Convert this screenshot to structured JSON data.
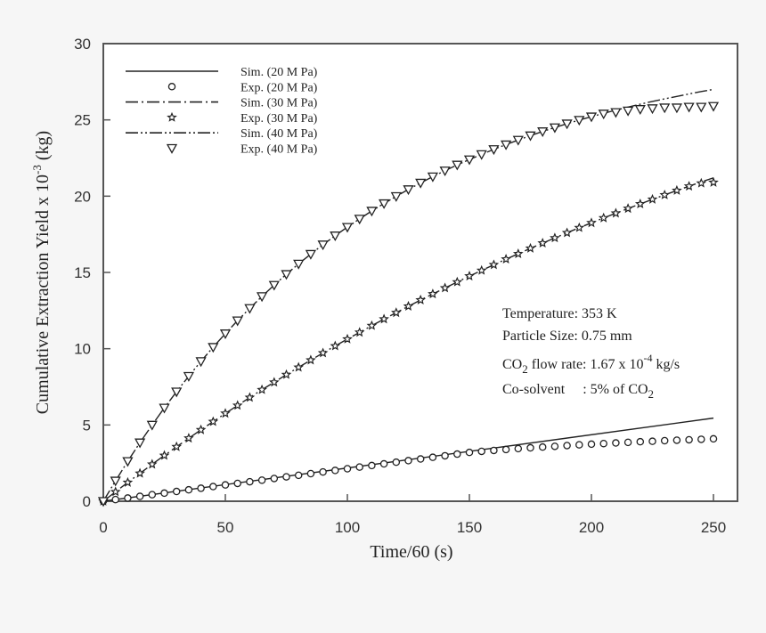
{
  "chart_data": {
    "type": "scatter",
    "xlabel": "Time/60 (s)",
    "ylabel_parts": [
      "Cumulative Extraction Yield x 10",
      "-3",
      " (kg)"
    ],
    "xlim": [
      0,
      250
    ],
    "ylim": [
      0,
      30
    ],
    "xticks": [
      0,
      50,
      100,
      150,
      200,
      250
    ],
    "yticks": [
      0,
      5,
      10,
      15,
      20,
      25,
      30
    ],
    "grid": false,
    "legend_placement": "top-left",
    "annotation": {
      "temperature": "Temperature:  353 K",
      "particle_size": "Particle Size:  0.75 mm",
      "flow_parts": [
        "CO",
        "2",
        " flow rate: 1.67 x 10",
        "-4",
        " kg/s"
      ],
      "cosolvent_parts": [
        "Co-solvent     : 5% of CO",
        "2"
      ]
    },
    "x": [
      0,
      5,
      10,
      15,
      20,
      25,
      30,
      35,
      40,
      45,
      50,
      55,
      60,
      65,
      70,
      75,
      80,
      85,
      90,
      95,
      100,
      105,
      110,
      115,
      120,
      125,
      130,
      135,
      140,
      145,
      150,
      155,
      160,
      165,
      170,
      175,
      180,
      185,
      190,
      195,
      200,
      205,
      210,
      215,
      220,
      225,
      230,
      235,
      240,
      245,
      250
    ],
    "series": [
      {
        "name": "Sim. (20 M Pa)",
        "kind": "line",
        "style": "solid",
        "x": [
          0,
          250
        ],
        "y": [
          0,
          5.45
        ]
      },
      {
        "name": "Exp. (20 M Pa)",
        "kind": "marker",
        "marker": "circle",
        "y": [
          0,
          0.11,
          0.21,
          0.32,
          0.43,
          0.53,
          0.64,
          0.75,
          0.85,
          0.96,
          1.07,
          1.17,
          1.28,
          1.38,
          1.49,
          1.6,
          1.7,
          1.81,
          1.92,
          2.02,
          2.13,
          2.24,
          2.34,
          2.45,
          2.56,
          2.66,
          2.77,
          2.88,
          2.98,
          3.09,
          3.2,
          3.27,
          3.33,
          3.39,
          3.45,
          3.5,
          3.55,
          3.6,
          3.65,
          3.7,
          3.74,
          3.78,
          3.82,
          3.86,
          3.9,
          3.93,
          3.97,
          4.0,
          4.03,
          4.06,
          4.09
        ]
      },
      {
        "name": "Sim. (30 M Pa)",
        "kind": "line",
        "style": "dash-dot",
        "y": [
          0,
          0.62,
          1.23,
          1.83,
          2.42,
          3.0,
          3.57,
          4.13,
          4.68,
          5.22,
          5.76,
          6.28,
          6.8,
          7.31,
          7.8,
          8.3,
          8.78,
          9.25,
          9.72,
          10.18,
          10.63,
          11.07,
          11.51,
          11.94,
          12.36,
          12.78,
          13.19,
          13.59,
          13.98,
          14.37,
          14.76,
          15.13,
          15.5,
          15.87,
          16.22,
          16.58,
          16.92,
          17.26,
          17.6,
          17.93,
          18.25,
          18.57,
          18.88,
          19.19,
          19.49,
          19.79,
          20.08,
          20.37,
          20.65,
          20.93,
          21.2
        ]
      },
      {
        "name": "Exp. (30 M Pa)",
        "kind": "marker",
        "marker": "star",
        "y": [
          0,
          0.62,
          1.23,
          1.83,
          2.42,
          3.0,
          3.57,
          4.13,
          4.68,
          5.22,
          5.76,
          6.28,
          6.8,
          7.31,
          7.8,
          8.3,
          8.78,
          9.25,
          9.72,
          10.18,
          10.63,
          11.07,
          11.51,
          11.94,
          12.36,
          12.78,
          13.19,
          13.59,
          13.98,
          14.37,
          14.76,
          15.13,
          15.5,
          15.87,
          16.22,
          16.58,
          16.92,
          17.26,
          17.6,
          17.93,
          18.25,
          18.57,
          18.88,
          19.19,
          19.49,
          19.79,
          20.08,
          20.37,
          20.65,
          20.85,
          20.9
        ]
      },
      {
        "name": "Sim. (40 M Pa)",
        "kind": "line",
        "style": "dash-dot-dot",
        "y": [
          0,
          1.34,
          2.62,
          3.84,
          5.0,
          6.12,
          7.18,
          8.2,
          9.17,
          10.1,
          10.99,
          11.84,
          12.65,
          13.43,
          14.17,
          14.88,
          15.56,
          16.2,
          16.82,
          17.41,
          17.97,
          18.51,
          19.03,
          19.52,
          19.99,
          20.44,
          20.87,
          21.28,
          21.67,
          22.05,
          22.4,
          22.74,
          23.07,
          23.38,
          23.68,
          23.97,
          24.24,
          24.5,
          24.75,
          24.99,
          25.21,
          25.43,
          25.64,
          25.84,
          26.03,
          26.21,
          26.38,
          26.54,
          26.7,
          26.86,
          27.0
        ]
      },
      {
        "name": "Exp. (40 M Pa)",
        "kind": "marker",
        "marker": "triangle-down",
        "y": [
          0,
          1.34,
          2.62,
          3.84,
          5.0,
          6.12,
          7.18,
          8.2,
          9.17,
          10.1,
          10.99,
          11.84,
          12.65,
          13.43,
          14.17,
          14.88,
          15.56,
          16.2,
          16.82,
          17.41,
          17.97,
          18.51,
          19.03,
          19.52,
          19.99,
          20.44,
          20.87,
          21.28,
          21.67,
          22.05,
          22.4,
          22.74,
          23.07,
          23.38,
          23.68,
          23.97,
          24.24,
          24.5,
          24.75,
          24.99,
          25.21,
          25.4,
          25.5,
          25.6,
          25.7,
          25.75,
          25.8,
          25.8,
          25.85,
          25.85,
          25.9
        ]
      }
    ]
  }
}
